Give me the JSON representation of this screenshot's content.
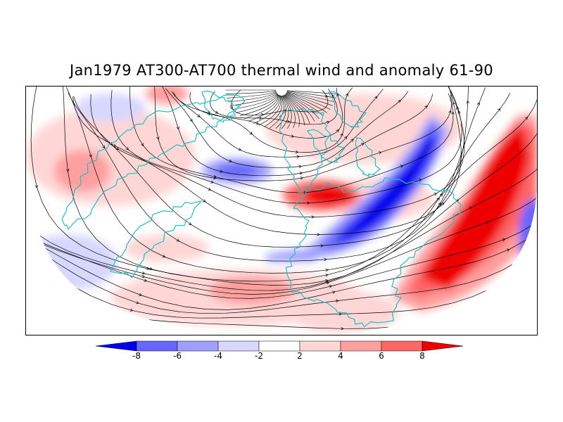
{
  "title": "Jan1979 AT300-AT700 thermal wind and anomaly 61-90",
  "legend": {
    "labels": [
      "-8",
      "-6",
      "-4",
      "-2",
      "2",
      "4",
      "6",
      "8"
    ],
    "colors": [
      "#0000ee",
      "#6666ff",
      "#9f9fff",
      "#d7d7ff",
      "#ffffff",
      "#ffd6d6",
      "#ff9f9f",
      "#ff6666",
      "#ee0000"
    ]
  },
  "map": {
    "projection": "polar stereographic (lower half shown)",
    "coastline_color": "#20c0c0",
    "streamline_color": "#000000"
  }
}
